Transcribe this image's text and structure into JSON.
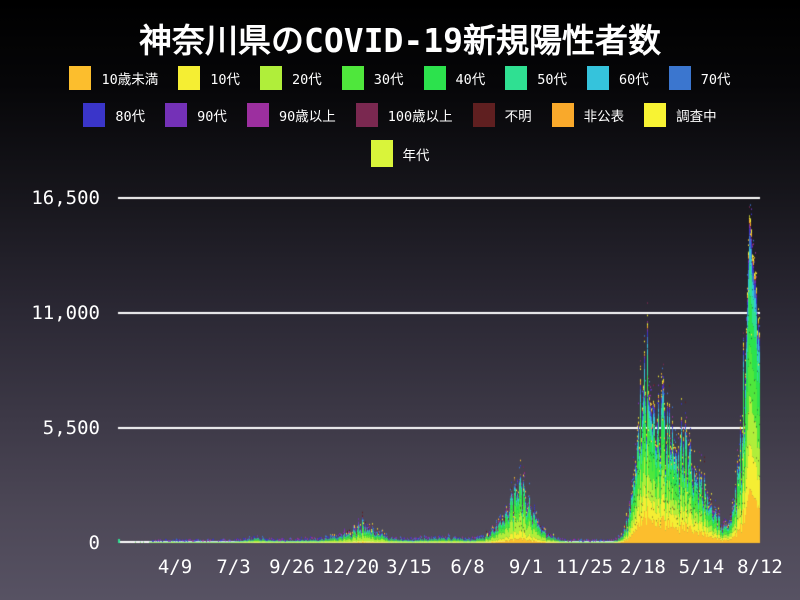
{
  "chart_data": {
    "type": "bar",
    "stacked": true,
    "title": "神奈川県のCOVID-19新規陽性者数",
    "xlabel": "",
    "ylabel": "",
    "ylim": [
      0,
      16500
    ],
    "y_tick_values": [
      16500,
      11000,
      5500,
      0
    ],
    "y_tick_labels": [
      "16,500",
      "11,000",
      "5,500",
      "0"
    ],
    "x_tick_labels": [
      "4/9",
      "7/3",
      "9/26",
      "12/20",
      "3/15",
      "6/8",
      "9/1",
      "11/25",
      "2/18",
      "5/14",
      "8/12"
    ],
    "x_axis_note": "daily bars from early 2020 (left) to 2022-08-12 (right); ticks every 12 weeks",
    "grid": "horizontal white lines at 5,500 / 11,000 / 16,500 and white baseline at 0",
    "legend_position": "top",
    "series": [
      {
        "name": "10歳未満",
        "color": "#fcbe2d"
      },
      {
        "name": "10代",
        "color": "#f5ee33"
      },
      {
        "name": "20代",
        "color": "#b0ee3a"
      },
      {
        "name": "30代",
        "color": "#4fe73c"
      },
      {
        "name": "40代",
        "color": "#2ce24d"
      },
      {
        "name": "50代",
        "color": "#2fe092"
      },
      {
        "name": "60代",
        "color": "#35c3dc"
      },
      {
        "name": "70代",
        "color": "#3b76cf"
      },
      {
        "name": "80代",
        "color": "#3a35c9"
      },
      {
        "name": "90代",
        "color": "#7431b7"
      },
      {
        "name": "90歳以上",
        "color": "#9c2f9f"
      },
      {
        "name": "100歳以上",
        "color": "#7a2850"
      },
      {
        "name": "不明",
        "color": "#5f1f20"
      },
      {
        "name": "非公表",
        "color": "#f9a92b"
      },
      {
        "name": "調査中",
        "color": "#f8f333"
      },
      {
        "name": "年代",
        "color": "#d9f43a"
      }
    ],
    "daily_total_envelope_note": "[fraction across x-axis, approx total daily cases] key points read from plot; waves: Apr 2020 ~100, Aug 2020 ~240, Jan 2021 ~930, Aug 2021 (delta) ~2750, Feb 2022 (omicron) ~8100 with rebound ~6100 in Mar, trough ~720 late Jun 2022, final spike ~16300 around 8/10/2022",
    "daily_total_envelope": [
      [
        0.0,
        2
      ],
      [
        0.05,
        4
      ],
      [
        0.07,
        25
      ],
      [
        0.084,
        95
      ],
      [
        0.097,
        45
      ],
      [
        0.12,
        12
      ],
      [
        0.167,
        35
      ],
      [
        0.195,
        120
      ],
      [
        0.215,
        240
      ],
      [
        0.237,
        130
      ],
      [
        0.271,
        110
      ],
      [
        0.312,
        160
      ],
      [
        0.346,
        310
      ],
      [
        0.365,
        480
      ],
      [
        0.381,
        930
      ],
      [
        0.396,
        580
      ],
      [
        0.418,
        270
      ],
      [
        0.443,
        155
      ],
      [
        0.459,
        135
      ],
      [
        0.484,
        210
      ],
      [
        0.507,
        255
      ],
      [
        0.53,
        205
      ],
      [
        0.548,
        165
      ],
      [
        0.568,
        260
      ],
      [
        0.59,
        650
      ],
      [
        0.607,
        1500
      ],
      [
        0.621,
        2500
      ],
      [
        0.629,
        2750
      ],
      [
        0.638,
        1900
      ],
      [
        0.655,
        800
      ],
      [
        0.672,
        320
      ],
      [
        0.693,
        110
      ],
      [
        0.721,
        35
      ],
      [
        0.749,
        18
      ],
      [
        0.771,
        45
      ],
      [
        0.786,
        320
      ],
      [
        0.799,
        1600
      ],
      [
        0.81,
        4800
      ],
      [
        0.819,
        7600
      ],
      [
        0.825,
        8100
      ],
      [
        0.833,
        6600
      ],
      [
        0.841,
        5400
      ],
      [
        0.85,
        6100
      ],
      [
        0.858,
        5400
      ],
      [
        0.867,
        4500
      ],
      [
        0.878,
        4400
      ],
      [
        0.889,
        4300
      ],
      [
        0.898,
        3600
      ],
      [
        0.91,
        2900
      ],
      [
        0.924,
        1800
      ],
      [
        0.938,
        1050
      ],
      [
        0.95,
        720
      ],
      [
        0.961,
        1800
      ],
      [
        0.97,
        4200
      ],
      [
        0.978,
        8500
      ],
      [
        0.983,
        14500
      ],
      [
        0.986,
        16300
      ],
      [
        0.99,
        13800
      ],
      [
        0.995,
        11800
      ],
      [
        1.0,
        10800
      ]
    ],
    "age_share_profiles": {
      "note": "approx share of stacked band thickness bottom-to-top (order = series order) for three eras, blended over time",
      "era_2020": [
        0.045,
        0.065,
        0.29,
        0.17,
        0.135,
        0.115,
        0.07,
        0.05,
        0.032,
        0.013,
        0.004,
        0.001,
        0.004,
        0.003,
        0.002,
        0.001
      ],
      "era_2021_delta": [
        0.075,
        0.115,
        0.27,
        0.19,
        0.155,
        0.1,
        0.045,
        0.02,
        0.012,
        0.005,
        0.002,
        0.0005,
        0.003,
        0.004,
        0.002,
        0.001
      ],
      "era_2022": [
        0.165,
        0.135,
        0.15,
        0.155,
        0.155,
        0.095,
        0.052,
        0.031,
        0.022,
        0.01,
        0.003,
        0.001,
        0.002,
        0.012,
        0.01,
        0.002
      ],
      "blend_nodes_fraction": [
        0.0,
        0.55,
        0.6,
        0.72,
        0.8,
        1.0
      ]
    },
    "colors": {
      "background_top": "#000000",
      "background_bottom": "#575263",
      "grid": "#ffffff",
      "text": "#ffffff",
      "speckle_cap_colors": [
        "#3a35c9",
        "#7431b7",
        "#9c2f9f",
        "#7a2850",
        "#f5ee33",
        "#fcbe2d",
        "#5f1f20",
        "#3b76cf"
      ]
    }
  },
  "legend": {
    "rows": [
      {
        "items": [
          {
            "label": "10歳未満",
            "color": "#fcbe2d"
          },
          {
            "label": "10代",
            "color": "#f5ee33"
          },
          {
            "label": "20代",
            "color": "#b0ee3a"
          },
          {
            "label": "30代",
            "color": "#4fe73c"
          },
          {
            "label": "40代",
            "color": "#2ce24d"
          },
          {
            "label": "50代",
            "color": "#2fe092"
          },
          {
            "label": "60代",
            "color": "#35c3dc"
          },
          {
            "label": "70代",
            "color": "#3b76cf"
          }
        ]
      },
      {
        "items": [
          {
            "label": "80代",
            "color": "#3a35c9"
          },
          {
            "label": "90代",
            "color": "#7431b7"
          },
          {
            "label": "90歳以上",
            "color": "#9c2f9f"
          },
          {
            "label": "100歳以上",
            "color": "#7a2850"
          },
          {
            "label": "不明",
            "color": "#5f1f20"
          },
          {
            "label": "非公表",
            "color": "#f9a92b"
          },
          {
            "label": "調査中",
            "color": "#f8f333"
          }
        ]
      },
      {
        "items": [
          {
            "label": "年代",
            "color": "#d9f43a"
          }
        ]
      }
    ]
  }
}
